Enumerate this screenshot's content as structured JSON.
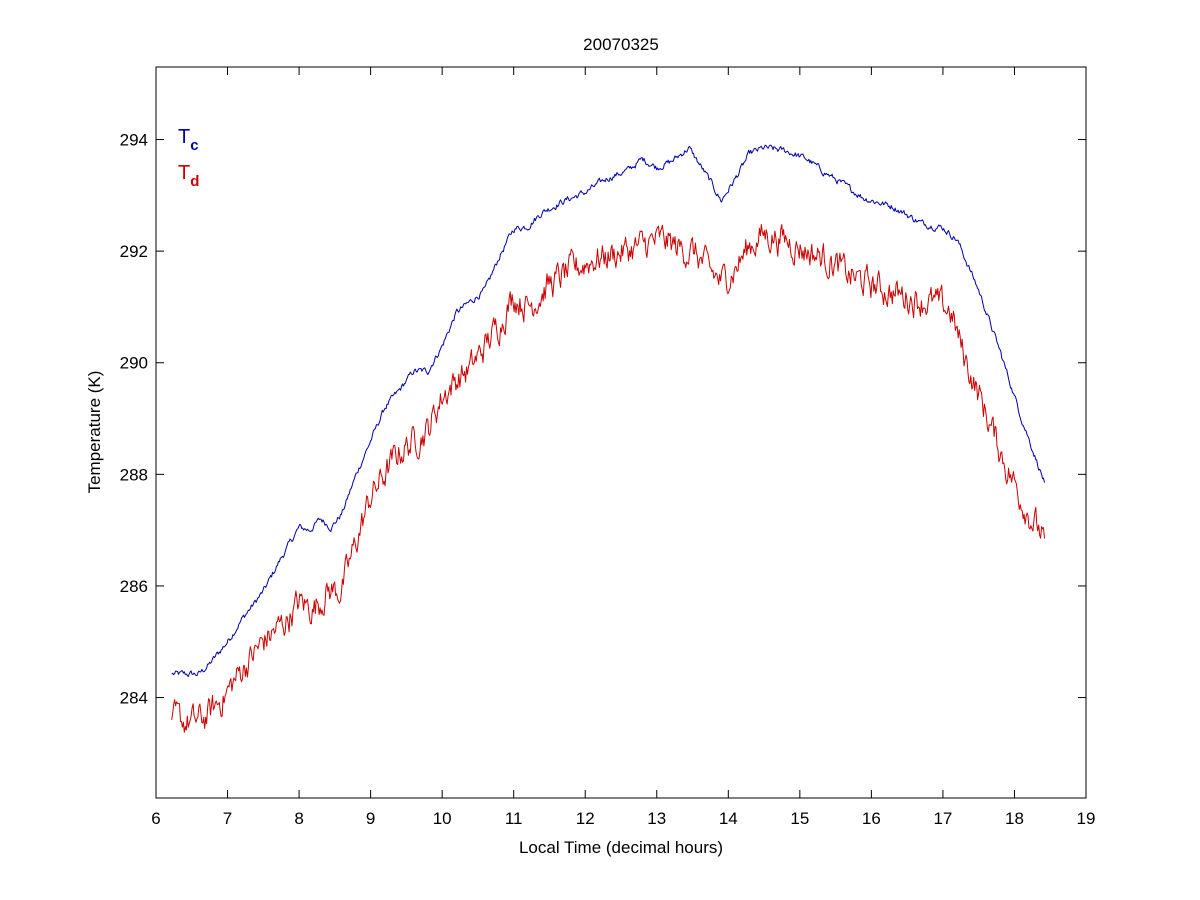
{
  "chart_data": {
    "type": "line",
    "title": "20070325",
    "xlabel": "Local Time (decimal hours)",
    "ylabel": "Temperature (K)",
    "xlim": [
      6,
      19
    ],
    "ylim": [
      282.2,
      295.3
    ],
    "xticks": [
      6,
      7,
      8,
      9,
      10,
      11,
      12,
      13,
      14,
      15,
      16,
      17,
      18,
      19
    ],
    "yticks": [
      284,
      286,
      288,
      290,
      292,
      294
    ],
    "grid": false,
    "legend_position": "top-left",
    "series": [
      {
        "name": "T",
        "name_sub": "c",
        "color": "#0000aa",
        "noise": 0.05,
        "x": [
          6.22,
          6.6,
          6.75,
          7.0,
          7.2,
          7.5,
          7.75,
          8.0,
          8.15,
          8.3,
          8.45,
          8.6,
          8.8,
          9.0,
          9.2,
          9.4,
          9.6,
          9.8,
          10.0,
          10.2,
          10.4,
          10.6,
          10.8,
          11.0,
          11.2,
          11.4,
          11.7,
          12.0,
          12.3,
          12.6,
          12.8,
          13.0,
          13.2,
          13.45,
          13.6,
          13.75,
          13.9,
          14.1,
          14.3,
          14.5,
          14.8,
          15.1,
          15.3,
          15.6,
          15.9,
          16.3,
          16.7,
          17.0,
          17.2,
          17.5,
          17.8,
          18.1,
          18.42
        ],
        "y": [
          284.42,
          284.42,
          284.6,
          285.0,
          285.4,
          285.9,
          286.5,
          287.05,
          287.0,
          287.2,
          287.05,
          287.3,
          288.0,
          288.6,
          289.2,
          289.5,
          289.85,
          289.85,
          290.3,
          290.9,
          291.1,
          291.3,
          291.9,
          292.4,
          292.45,
          292.7,
          292.9,
          293.05,
          293.3,
          293.45,
          293.65,
          293.5,
          293.6,
          293.85,
          293.55,
          293.25,
          292.9,
          293.3,
          293.75,
          293.85,
          293.8,
          293.65,
          293.45,
          293.2,
          292.95,
          292.8,
          292.5,
          292.42,
          292.2,
          291.3,
          290.2,
          289.0,
          287.85
        ]
      },
      {
        "name": "T",
        "name_sub": "d",
        "color": "#cc0000",
        "noise": 0.22,
        "x": [
          6.22,
          6.5,
          6.7,
          7.0,
          7.2,
          7.5,
          7.8,
          8.0,
          8.2,
          8.4,
          8.6,
          8.8,
          9.0,
          9.2,
          9.4,
          9.6,
          9.8,
          10.0,
          10.2,
          10.4,
          10.6,
          10.8,
          11.0,
          11.2,
          11.5,
          11.8,
          12.1,
          12.4,
          12.7,
          12.9,
          13.1,
          13.3,
          13.5,
          13.7,
          13.9,
          14.1,
          14.3,
          14.5,
          14.8,
          15.1,
          15.4,
          15.7,
          16.0,
          16.3,
          16.6,
          16.9,
          17.1,
          17.3,
          17.6,
          17.9,
          18.2,
          18.42
        ],
        "y": [
          283.6,
          283.55,
          283.65,
          284.1,
          284.5,
          285.0,
          285.35,
          285.7,
          285.6,
          285.9,
          285.95,
          286.8,
          287.6,
          288.0,
          288.4,
          288.6,
          288.8,
          289.4,
          289.7,
          289.9,
          290.3,
          290.7,
          291.2,
          291.0,
          291.4,
          291.65,
          291.85,
          291.95,
          292.05,
          292.15,
          292.2,
          292.05,
          292.0,
          291.7,
          291.45,
          291.7,
          292.1,
          292.3,
          292.2,
          292.0,
          291.85,
          291.55,
          291.4,
          291.25,
          291.15,
          291.05,
          290.95,
          290.1,
          289.1,
          288.1,
          287.3,
          286.85
        ]
      }
    ]
  }
}
